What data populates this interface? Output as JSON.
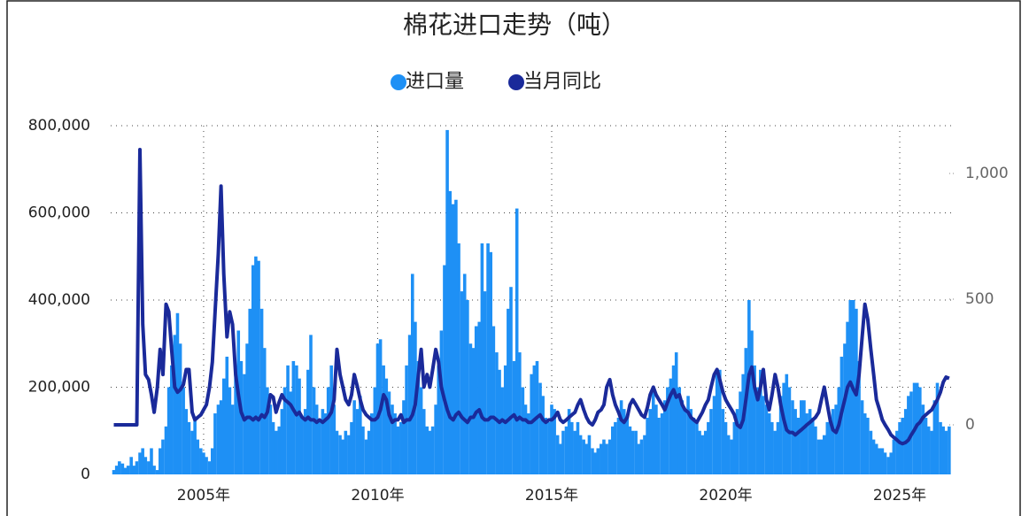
{
  "chart_data": {
    "type": "bar",
    "title": "棉花进口走势（吨）",
    "x": [
      2002.42,
      2002.5,
      2002.58,
      2002.67,
      2002.75,
      2002.83,
      2002.92,
      2003,
      2003.08,
      2003.17,
      2003.25,
      2003.33,
      2003.42,
      2003.5,
      2003.58,
      2003.67,
      2003.75,
      2003.83,
      2003.92,
      2004,
      2004.08,
      2004.17,
      2004.25,
      2004.33,
      2004.42,
      2004.5,
      2004.58,
      2004.67,
      2004.75,
      2004.83,
      2004.92,
      2005,
      2005.08,
      2005.17,
      2005.25,
      2005.33,
      2005.42,
      2005.5,
      2005.58,
      2005.67,
      2005.75,
      2005.83,
      2005.92,
      2006,
      2006.08,
      2006.17,
      2006.25,
      2006.33,
      2006.42,
      2006.5,
      2006.58,
      2006.67,
      2006.75,
      2006.83,
      2006.92,
      2007,
      2007.08,
      2007.17,
      2007.25,
      2007.33,
      2007.42,
      2007.5,
      2007.58,
      2007.67,
      2007.75,
      2007.83,
      2007.92,
      2008,
      2008.08,
      2008.17,
      2008.25,
      2008.33,
      2008.42,
      2008.5,
      2008.58,
      2008.67,
      2008.75,
      2008.83,
      2008.92,
      2009,
      2009.08,
      2009.17,
      2009.25,
      2009.33,
      2009.42,
      2009.5,
      2009.58,
      2009.67,
      2009.75,
      2009.83,
      2009.92,
      2010,
      2010.08,
      2010.17,
      2010.25,
      2010.33,
      2010.42,
      2010.5,
      2010.58,
      2010.67,
      2010.75,
      2010.83,
      2010.92,
      2011,
      2011.08,
      2011.17,
      2011.25,
      2011.33,
      2011.42,
      2011.5,
      2011.58,
      2011.67,
      2011.75,
      2011.83,
      2011.92,
      2012,
      2012.08,
      2012.17,
      2012.25,
      2012.33,
      2012.42,
      2012.5,
      2012.58,
      2012.67,
      2012.75,
      2012.83,
      2012.92,
      2013,
      2013.08,
      2013.17,
      2013.25,
      2013.33,
      2013.42,
      2013.5,
      2013.58,
      2013.67,
      2013.75,
      2013.83,
      2013.92,
      2014,
      2014.08,
      2014.17,
      2014.25,
      2014.33,
      2014.42,
      2014.5,
      2014.58,
      2014.67,
      2014.75,
      2014.83,
      2014.92,
      2015,
      2015.08,
      2015.17,
      2015.25,
      2015.33,
      2015.42,
      2015.5,
      2015.58,
      2015.67,
      2015.75,
      2015.83,
      2015.92,
      2016,
      2016.08,
      2016.17,
      2016.25,
      2016.33,
      2016.42,
      2016.5,
      2016.58,
      2016.67,
      2016.75,
      2016.83,
      2016.92,
      2017,
      2017.08,
      2017.17,
      2017.25,
      2017.33,
      2017.42,
      2017.5,
      2017.58,
      2017.67,
      2017.75,
      2017.83,
      2017.92,
      2018,
      2018.08,
      2018.17,
      2018.25,
      2018.33,
      2018.42,
      2018.5,
      2018.58,
      2018.67,
      2018.75,
      2018.83,
      2018.92,
      2019,
      2019.08,
      2019.17,
      2019.25,
      2019.33,
      2019.42,
      2019.5,
      2019.58,
      2019.67,
      2019.75,
      2019.83,
      2019.92,
      2020,
      2020.08,
      2020.17,
      2020.25,
      2020.33,
      2020.42,
      2020.5,
      2020.58,
      2020.67,
      2020.75,
      2020.83,
      2020.92,
      2021,
      2021.08,
      2021.17,
      2021.25,
      2021.33,
      2021.42,
      2021.5,
      2021.58,
      2021.67,
      2021.75,
      2021.83,
      2021.92,
      2022,
      2022.08,
      2022.17,
      2022.25,
      2022.33,
      2022.42,
      2022.5,
      2022.58,
      2022.67,
      2022.75,
      2022.83,
      2022.92,
      2023,
      2023.08,
      2023.17,
      2023.25,
      2023.33,
      2023.42,
      2023.5,
      2023.58,
      2023.67,
      2023.75,
      2023.83,
      2023.92,
      2024,
      2024.08,
      2024.17,
      2024.25,
      2024.33,
      2024.42,
      2024.5,
      2024.58,
      2024.67,
      2024.75,
      2024.83,
      2024.92,
      2025,
      2025.08,
      2025.17,
      2025.25,
      2025.33,
      2025.42,
      2025.5,
      2025.58,
      2025.67,
      2025.75,
      2025.83,
      2025.92,
      2026,
      2026.08,
      2026.17,
      2026.25,
      2026.33,
      2026.42
    ],
    "series": [
      {
        "name": "进口量",
        "color": "#1e90f5",
        "values": [
          10000,
          20000,
          30000,
          25000,
          15000,
          20000,
          40000,
          20000,
          30000,
          50000,
          60000,
          40000,
          30000,
          60000,
          20000,
          10000,
          60000,
          80000,
          110000,
          200000,
          250000,
          320000,
          370000,
          300000,
          200000,
          150000,
          120000,
          100000,
          130000,
          80000,
          60000,
          50000,
          40000,
          30000,
          60000,
          140000,
          160000,
          170000,
          220000,
          270000,
          200000,
          160000,
          230000,
          330000,
          260000,
          230000,
          300000,
          380000,
          480000,
          500000,
          490000,
          380000,
          290000,
          200000,
          160000,
          120000,
          100000,
          110000,
          150000,
          200000,
          250000,
          190000,
          260000,
          250000,
          220000,
          130000,
          150000,
          240000,
          320000,
          200000,
          160000,
          120000,
          150000,
          140000,
          200000,
          250000,
          160000,
          100000,
          90000,
          80000,
          100000,
          90000,
          120000,
          170000,
          150000,
          180000,
          110000,
          80000,
          100000,
          140000,
          200000,
          300000,
          310000,
          250000,
          220000,
          190000,
          160000,
          140000,
          110000,
          120000,
          170000,
          250000,
          320000,
          460000,
          350000,
          260000,
          200000,
          150000,
          110000,
          100000,
          110000,
          160000,
          250000,
          330000,
          480000,
          790000,
          650000,
          620000,
          630000,
          530000,
          420000,
          460000,
          400000,
          300000,
          290000,
          340000,
          350000,
          530000,
          420000,
          530000,
          510000,
          340000,
          280000,
          240000,
          200000,
          250000,
          380000,
          430000,
          260000,
          610000,
          280000,
          200000,
          160000,
          140000,
          230000,
          250000,
          260000,
          210000,
          180000,
          130000,
          120000,
          160000,
          150000,
          90000,
          70000,
          100000,
          110000,
          150000,
          120000,
          100000,
          120000,
          90000,
          80000,
          70000,
          90000,
          60000,
          50000,
          60000,
          70000,
          80000,
          70000,
          80000,
          110000,
          120000,
          130000,
          170000,
          150000,
          130000,
          110000,
          100000,
          100000,
          70000,
          80000,
          90000,
          130000,
          150000,
          190000,
          160000,
          130000,
          140000,
          170000,
          200000,
          220000,
          250000,
          280000,
          200000,
          170000,
          150000,
          180000,
          150000,
          130000,
          120000,
          100000,
          90000,
          100000,
          120000,
          150000,
          180000,
          230000,
          240000,
          150000,
          120000,
          90000,
          80000,
          120000,
          150000,
          190000,
          230000,
          290000,
          400000,
          330000,
          250000,
          200000,
          240000,
          180000,
          160000,
          140000,
          120000,
          100000,
          120000,
          180000,
          210000,
          230000,
          200000,
          170000,
          150000,
          130000,
          170000,
          170000,
          140000,
          150000,
          130000,
          110000,
          80000,
          80000,
          90000,
          120000,
          130000,
          150000,
          160000,
          200000,
          270000,
          300000,
          350000,
          400000,
          400000,
          380000,
          260000,
          170000,
          140000,
          130000,
          100000,
          80000,
          70000,
          60000,
          60000,
          50000,
          40000,
          50000,
          80000,
          100000,
          120000,
          130000,
          150000,
          180000,
          190000,
          210000,
          210000,
          200000,
          160000,
          130000,
          110000,
          100000,
          170000,
          210000,
          120000,
          110000,
          100000,
          110000
        ]
      },
      {
        "name": "当月同比",
        "color": "#1a2a9a",
        "type": "line",
        "axis": "y2",
        "values": [
          0,
          0,
          0,
          0,
          0,
          0,
          0,
          0,
          0,
          1095,
          400,
          200,
          180,
          120,
          50,
          150,
          300,
          200,
          480,
          450,
          300,
          150,
          130,
          140,
          160,
          220,
          220,
          50,
          20,
          30,
          40,
          60,
          80,
          150,
          250,
          450,
          680,
          950,
          600,
          350,
          450,
          400,
          200,
          120,
          50,
          20,
          30,
          30,
          20,
          30,
          20,
          40,
          30,
          50,
          120,
          110,
          50,
          90,
          120,
          100,
          90,
          80,
          60,
          40,
          50,
          30,
          20,
          30,
          20,
          20,
          10,
          20,
          10,
          20,
          30,
          50,
          100,
          300,
          200,
          150,
          100,
          80,
          120,
          200,
          150,
          100,
          60,
          40,
          30,
          20,
          20,
          30,
          60,
          120,
          100,
          40,
          10,
          20,
          20,
          40,
          10,
          20,
          20,
          40,
          80,
          200,
          300,
          150,
          200,
          150,
          220,
          300,
          250,
          150,
          100,
          60,
          30,
          20,
          40,
          50,
          30,
          20,
          10,
          30,
          30,
          50,
          60,
          30,
          20,
          20,
          30,
          30,
          20,
          10,
          20,
          10,
          20,
          30,
          40,
          20,
          30,
          20,
          20,
          10,
          10,
          20,
          30,
          40,
          20,
          10,
          20,
          20,
          30,
          50,
          20,
          10,
          20,
          30,
          40,
          50,
          80,
          100,
          60,
          30,
          10,
          0,
          20,
          50,
          60,
          80,
          150,
          180,
          120,
          80,
          50,
          20,
          10,
          30,
          80,
          100,
          80,
          60,
          40,
          30,
          70,
          120,
          150,
          120,
          100,
          80,
          60,
          90,
          120,
          140,
          110,
          120,
          80,
          60,
          50,
          30,
          20,
          10,
          30,
          50,
          80,
          100,
          150,
          200,
          220,
          180,
          130,
          100,
          80,
          60,
          40,
          0,
          -10,
          20,
          100,
          200,
          230,
          150,
          100,
          150,
          220,
          100,
          60,
          120,
          200,
          150,
          80,
          20,
          -20,
          -30,
          -30,
          -40,
          -30,
          -20,
          -10,
          0,
          10,
          20,
          30,
          50,
          100,
          150,
          80,
          20,
          -20,
          -30,
          0,
          50,
          100,
          150,
          170,
          140,
          120,
          200,
          350,
          480,
          420,
          300,
          200,
          100,
          60,
          20,
          0,
          -20,
          -40,
          -50,
          -60,
          -70,
          -75,
          -70,
          -60,
          -40,
          -20,
          0,
          10,
          30,
          40,
          50,
          60,
          80,
          100,
          130,
          170,
          190,
          185
        ]
      }
    ],
    "xlim": [
      2002.33,
      2026.5
    ],
    "xticks": [
      {
        "value": 2005,
        "label": "2005年"
      },
      {
        "value": 2010,
        "label": "2010年"
      },
      {
        "value": 2015,
        "label": "2015年"
      },
      {
        "value": 2020,
        "label": "2020年"
      },
      {
        "value": 2025,
        "label": "2025年"
      }
    ],
    "ylim": [
      0,
      800000
    ],
    "yticks": [
      0,
      {
        "value": 200000,
        "label": "200,000"
      },
      {
        "value": 400000,
        "label": "400,000"
      },
      {
        "value": 600000,
        "label": "600,000"
      },
      {
        "value": 800000,
        "label": "800,000"
      }
    ],
    "y2lim": [
      -197,
      1190
    ],
    "y2ticks": [
      0,
      500,
      {
        "value": 1000,
        "label": "1,000"
      }
    ],
    "grid": true
  }
}
